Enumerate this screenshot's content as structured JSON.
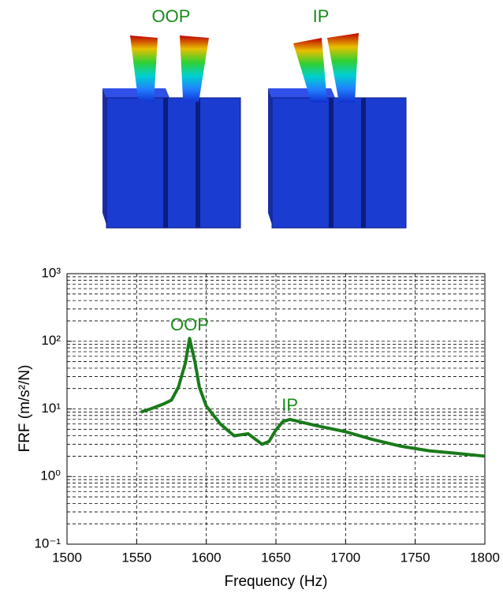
{
  "chart_data": {
    "type": "line",
    "mode_labels": [
      "OOP",
      "IP"
    ],
    "xlabel": "Frequency (Hz)",
    "ylabel": "FRF (m/s²/N)",
    "log_y": true,
    "grid": true,
    "minor_grid": true,
    "xlim": [
      1500,
      1800
    ],
    "xticks": [
      1500,
      1550,
      1600,
      1650,
      1700,
      1750,
      1800
    ],
    "ylim": [
      0.1,
      1000
    ],
    "yticks": [
      {
        "value": 0.1,
        "label": "10⁻¹"
      },
      {
        "value": 1,
        "label": "10⁰"
      },
      {
        "value": 10,
        "label": "10¹"
      },
      {
        "value": 100,
        "label": "10²"
      },
      {
        "value": 1000,
        "label": "10³"
      }
    ],
    "x": [
      1553,
      1560,
      1570,
      1575,
      1580,
      1585,
      1588,
      1592,
      1595,
      1600,
      1610,
      1620,
      1630,
      1640,
      1645,
      1650,
      1655,
      1660,
      1665,
      1680,
      1700,
      1720,
      1740,
      1760,
      1780,
      1800
    ],
    "series": [
      {
        "color": "#1a7a1a",
        "values": [
          9,
          10,
          12,
          13.5,
          21,
          48,
          110,
          48,
          21,
          11,
          6,
          4,
          4.3,
          3,
          3.3,
          4.9,
          6.5,
          7,
          6.6,
          5.6,
          4.6,
          3.5,
          2.8,
          2.4,
          2.2,
          2
        ]
      }
    ],
    "annotations": [
      {
        "text": "OOP",
        "x": 1588,
        "y": 170
      },
      {
        "text": "IP",
        "x": 1660,
        "y": 11
      }
    ]
  }
}
